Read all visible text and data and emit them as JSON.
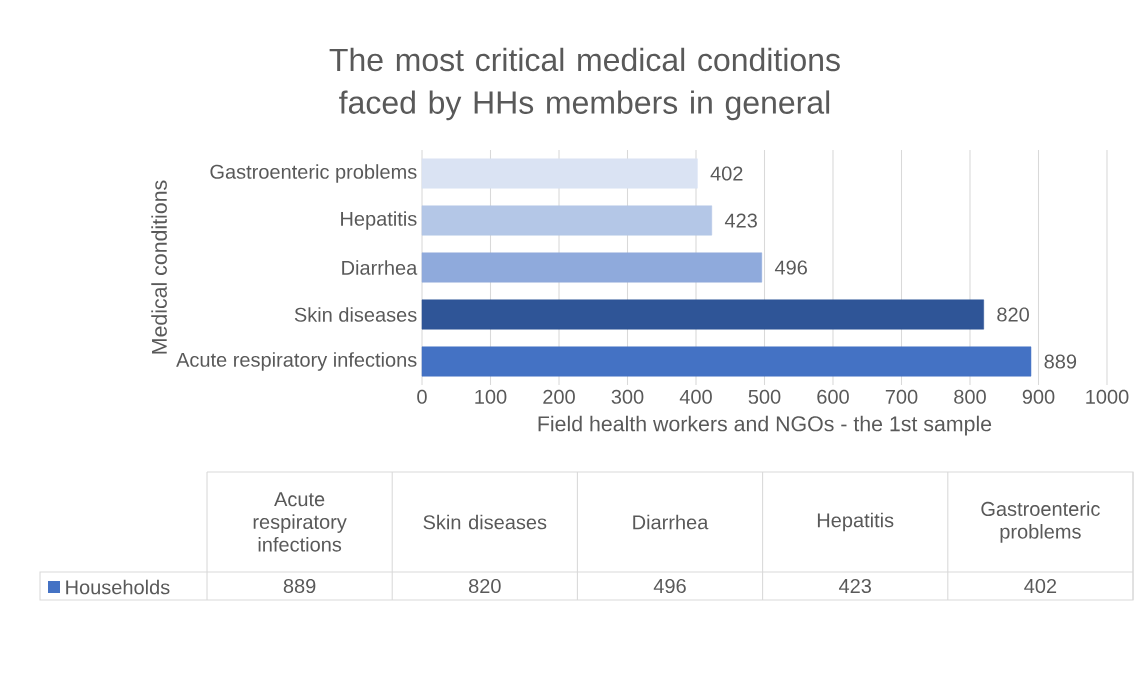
{
  "chart_data": {
    "type": "bar",
    "orientation": "horizontal",
    "title": "The most critical medical conditions faced by HHs members in general",
    "xlabel": "Field health workers and NGOs - the 1st sample",
    "ylabel": "Medical conditions",
    "categories": [
      "Gastroenteric problems",
      "Hepatitis",
      "Diarrhea",
      "Skin diseases",
      "Acute respiratory infections"
    ],
    "series": [
      {
        "name": "Households",
        "values": [
          402,
          423,
          496,
          820,
          889
        ],
        "value_labels": [
          "402",
          "423",
          "496",
          "820",
          "889"
        ]
      }
    ],
    "colors": [
      "#dae3f3",
      "#b4c7e7",
      "#8faadc",
      "#2f5597",
      "#4472c4"
    ],
    "annotations": [
      "889",
      "820",
      "496",
      "423",
      "402"
    ],
    "xlim": [
      0,
      1000
    ],
    "xticks": [
      0,
      100,
      200,
      300,
      400,
      500,
      600,
      700,
      800,
      900,
      1000
    ],
    "grid": "x",
    "data_labels": true
  }
}
